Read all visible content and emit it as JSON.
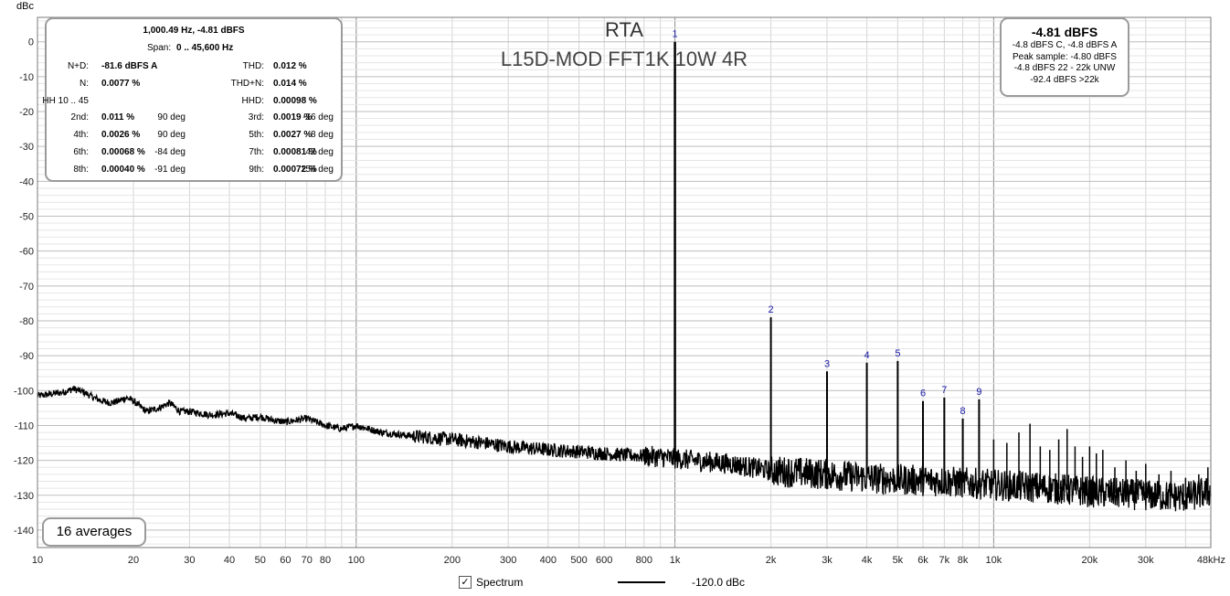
{
  "y_unit": "dBc",
  "stats_box": {
    "header_freq": "1,000.49 Hz, -4.81 dBFS",
    "span_label": "Span:",
    "span_value": "0 .. 45,600 Hz",
    "rows": [
      {
        "l1": "N+D:",
        "v1": "-81.6 dBFS A",
        "l2": "THD:",
        "v2": "0.012 %",
        "d1": "",
        "d2": ""
      },
      {
        "l1": "N:",
        "v1": "0.0077 %",
        "l2": "THD+N:",
        "v2": "0.014 %",
        "d1": "",
        "d2": ""
      },
      {
        "l1": "HH 10 .. 45",
        "v1": "",
        "l2": "HHD:",
        "v2": "0.00098 %",
        "d1": "",
        "d2": ""
      },
      {
        "l1": "2nd:",
        "v1": "0.011 %",
        "d1": "90 deg",
        "l2": "3rd:",
        "v2": "0.0019 %",
        "d2": "-16 deg"
      },
      {
        "l1": "4th:",
        "v1": "0.0026 %",
        "d1": "90 deg",
        "l2": "5th:",
        "v2": "0.0027 %",
        "d2": "8 deg"
      },
      {
        "l1": "6th:",
        "v1": "0.00068 %",
        "d1": "-84 deg",
        "l2": "7th:",
        "v2": "0.00081 %",
        "d2": "42 deg"
      },
      {
        "l1": "8th:",
        "v1": "0.00040 %",
        "d1": "-91 deg",
        "l2": "9th:",
        "v2": "0.00072 %",
        "d2": "156 deg"
      }
    ]
  },
  "level_box": {
    "main": "-4.81 dBFS",
    "lines": [
      "-4.8 dBFS C, -4.8 dBFS A",
      "Peak sample: -4.80 dBFS",
      "-4.8 dBFS 22 - 22k UNW",
      "-92.4 dBFS >22k"
    ]
  },
  "averages_label": "16 averages",
  "legend": {
    "check": "✓",
    "series_label": "Spectrum",
    "reference_label": "-120.0 dBc"
  },
  "colors": {
    "trace": "#000000",
    "harmonic_label": "#1a1aa8",
    "grid_major": "#8c8c8c",
    "grid_minor": "#d4d4d4"
  },
  "chart_data": {
    "type": "line",
    "title": "RTA",
    "subtitle": "L15D-MOD FFT1K 10W 4R",
    "xlabel": "",
    "ylabel": "dBc",
    "x_scale": "log",
    "xlim": [
      10,
      48000
    ],
    "ylim": [
      -145,
      7
    ],
    "x_ticks": [
      {
        "v": 10,
        "label": "10"
      },
      {
        "v": 20,
        "label": "20"
      },
      {
        "v": 30,
        "label": "30"
      },
      {
        "v": 40,
        "label": "40"
      },
      {
        "v": 50,
        "label": "50"
      },
      {
        "v": 60,
        "label": "60"
      },
      {
        "v": 70,
        "label": "70"
      },
      {
        "v": 80,
        "label": "80"
      },
      {
        "v": 100,
        "label": "100"
      },
      {
        "v": 200,
        "label": "200"
      },
      {
        "v": 300,
        "label": "300"
      },
      {
        "v": 400,
        "label": "400"
      },
      {
        "v": 500,
        "label": "500"
      },
      {
        "v": 600,
        "label": "600"
      },
      {
        "v": 800,
        "label": "800"
      },
      {
        "v": 1000,
        "label": "1k"
      },
      {
        "v": 2000,
        "label": "2k"
      },
      {
        "v": 3000,
        "label": "3k"
      },
      {
        "v": 4000,
        "label": "4k"
      },
      {
        "v": 5000,
        "label": "5k"
      },
      {
        "v": 6000,
        "label": "6k"
      },
      {
        "v": 7000,
        "label": "7k"
      },
      {
        "v": 8000,
        "label": "8k"
      },
      {
        "v": 10000,
        "label": "10k"
      },
      {
        "v": 20000,
        "label": "20k"
      },
      {
        "v": 30000,
        "label": "30k"
      },
      {
        "v": 48000,
        "label": "48kHz"
      }
    ],
    "y_ticks": [
      0,
      -10,
      -20,
      -30,
      -40,
      -50,
      -60,
      -70,
      -80,
      -90,
      -100,
      -110,
      -120,
      -130,
      -140
    ],
    "grid": true,
    "series": [
      {
        "name": "Spectrum",
        "noise_floor": [
          [
            10,
            -101.5
          ],
          [
            11,
            -101
          ],
          [
            12,
            -100.5
          ],
          [
            13,
            -99.5
          ],
          [
            14,
            -100.5
          ],
          [
            15,
            -102
          ],
          [
            16,
            -103
          ],
          [
            17,
            -103.5
          ],
          [
            18,
            -103
          ],
          [
            19,
            -102
          ],
          [
            20,
            -103
          ],
          [
            22,
            -106
          ],
          [
            24,
            -105
          ],
          [
            26,
            -103.5
          ],
          [
            28,
            -106
          ],
          [
            30,
            -106
          ],
          [
            35,
            -107
          ],
          [
            40,
            -106.5
          ],
          [
            45,
            -108
          ],
          [
            50,
            -107.5
          ],
          [
            55,
            -108.5
          ],
          [
            60,
            -109
          ],
          [
            70,
            -108
          ],
          [
            80,
            -110
          ],
          [
            90,
            -111
          ],
          [
            100,
            -110
          ],
          [
            120,
            -112
          ],
          [
            150,
            -113
          ],
          [
            200,
            -114
          ],
          [
            250,
            -115
          ],
          [
            300,
            -116
          ],
          [
            400,
            -117
          ],
          [
            500,
            -117.5
          ],
          [
            700,
            -118.5
          ],
          [
            900,
            -119
          ],
          [
            1000,
            -119.5
          ],
          [
            1500,
            -121
          ],
          [
            2000,
            -123
          ],
          [
            3000,
            -124
          ],
          [
            4000,
            -125
          ],
          [
            5000,
            -125.5
          ],
          [
            7000,
            -126
          ],
          [
            10000,
            -127
          ],
          [
            15000,
            -128
          ],
          [
            20000,
            -129
          ],
          [
            30000,
            -130
          ],
          [
            40000,
            -130.5
          ],
          [
            48000,
            -129
          ]
        ],
        "harmonics": [
          {
            "label": "1",
            "f": 1000,
            "level": 0
          },
          {
            "label": "2",
            "f": 2000,
            "level": -79
          },
          {
            "label": "3",
            "f": 3000,
            "level": -94.5
          },
          {
            "label": "4",
            "f": 4000,
            "level": -92
          },
          {
            "label": "5",
            "f": 5000,
            "level": -91.5
          },
          {
            "label": "6",
            "f": 6000,
            "level": -103
          },
          {
            "label": "7",
            "f": 7000,
            "level": -102
          },
          {
            "label": "8",
            "f": 8000,
            "level": -108
          },
          {
            "label": "9",
            "f": 9000,
            "level": -102.5
          }
        ],
        "higher_spurs": [
          [
            10000,
            -114
          ],
          [
            11000,
            -115
          ],
          [
            12000,
            -112
          ],
          [
            13000,
            -109.5
          ],
          [
            14000,
            -116
          ],
          [
            15000,
            -117
          ],
          [
            16000,
            -114
          ],
          [
            17000,
            -111
          ],
          [
            18000,
            -116
          ],
          [
            19000,
            -119
          ],
          [
            20000,
            -116
          ],
          [
            21000,
            -118
          ],
          [
            22000,
            -117
          ],
          [
            24000,
            -122
          ],
          [
            26000,
            -120
          ],
          [
            28000,
            -123
          ],
          [
            30000,
            -121
          ],
          [
            33000,
            -124
          ],
          [
            36000,
            -123
          ],
          [
            40000,
            -125
          ],
          [
            44000,
            -124
          ],
          [
            47000,
            -122
          ]
        ]
      }
    ]
  }
}
